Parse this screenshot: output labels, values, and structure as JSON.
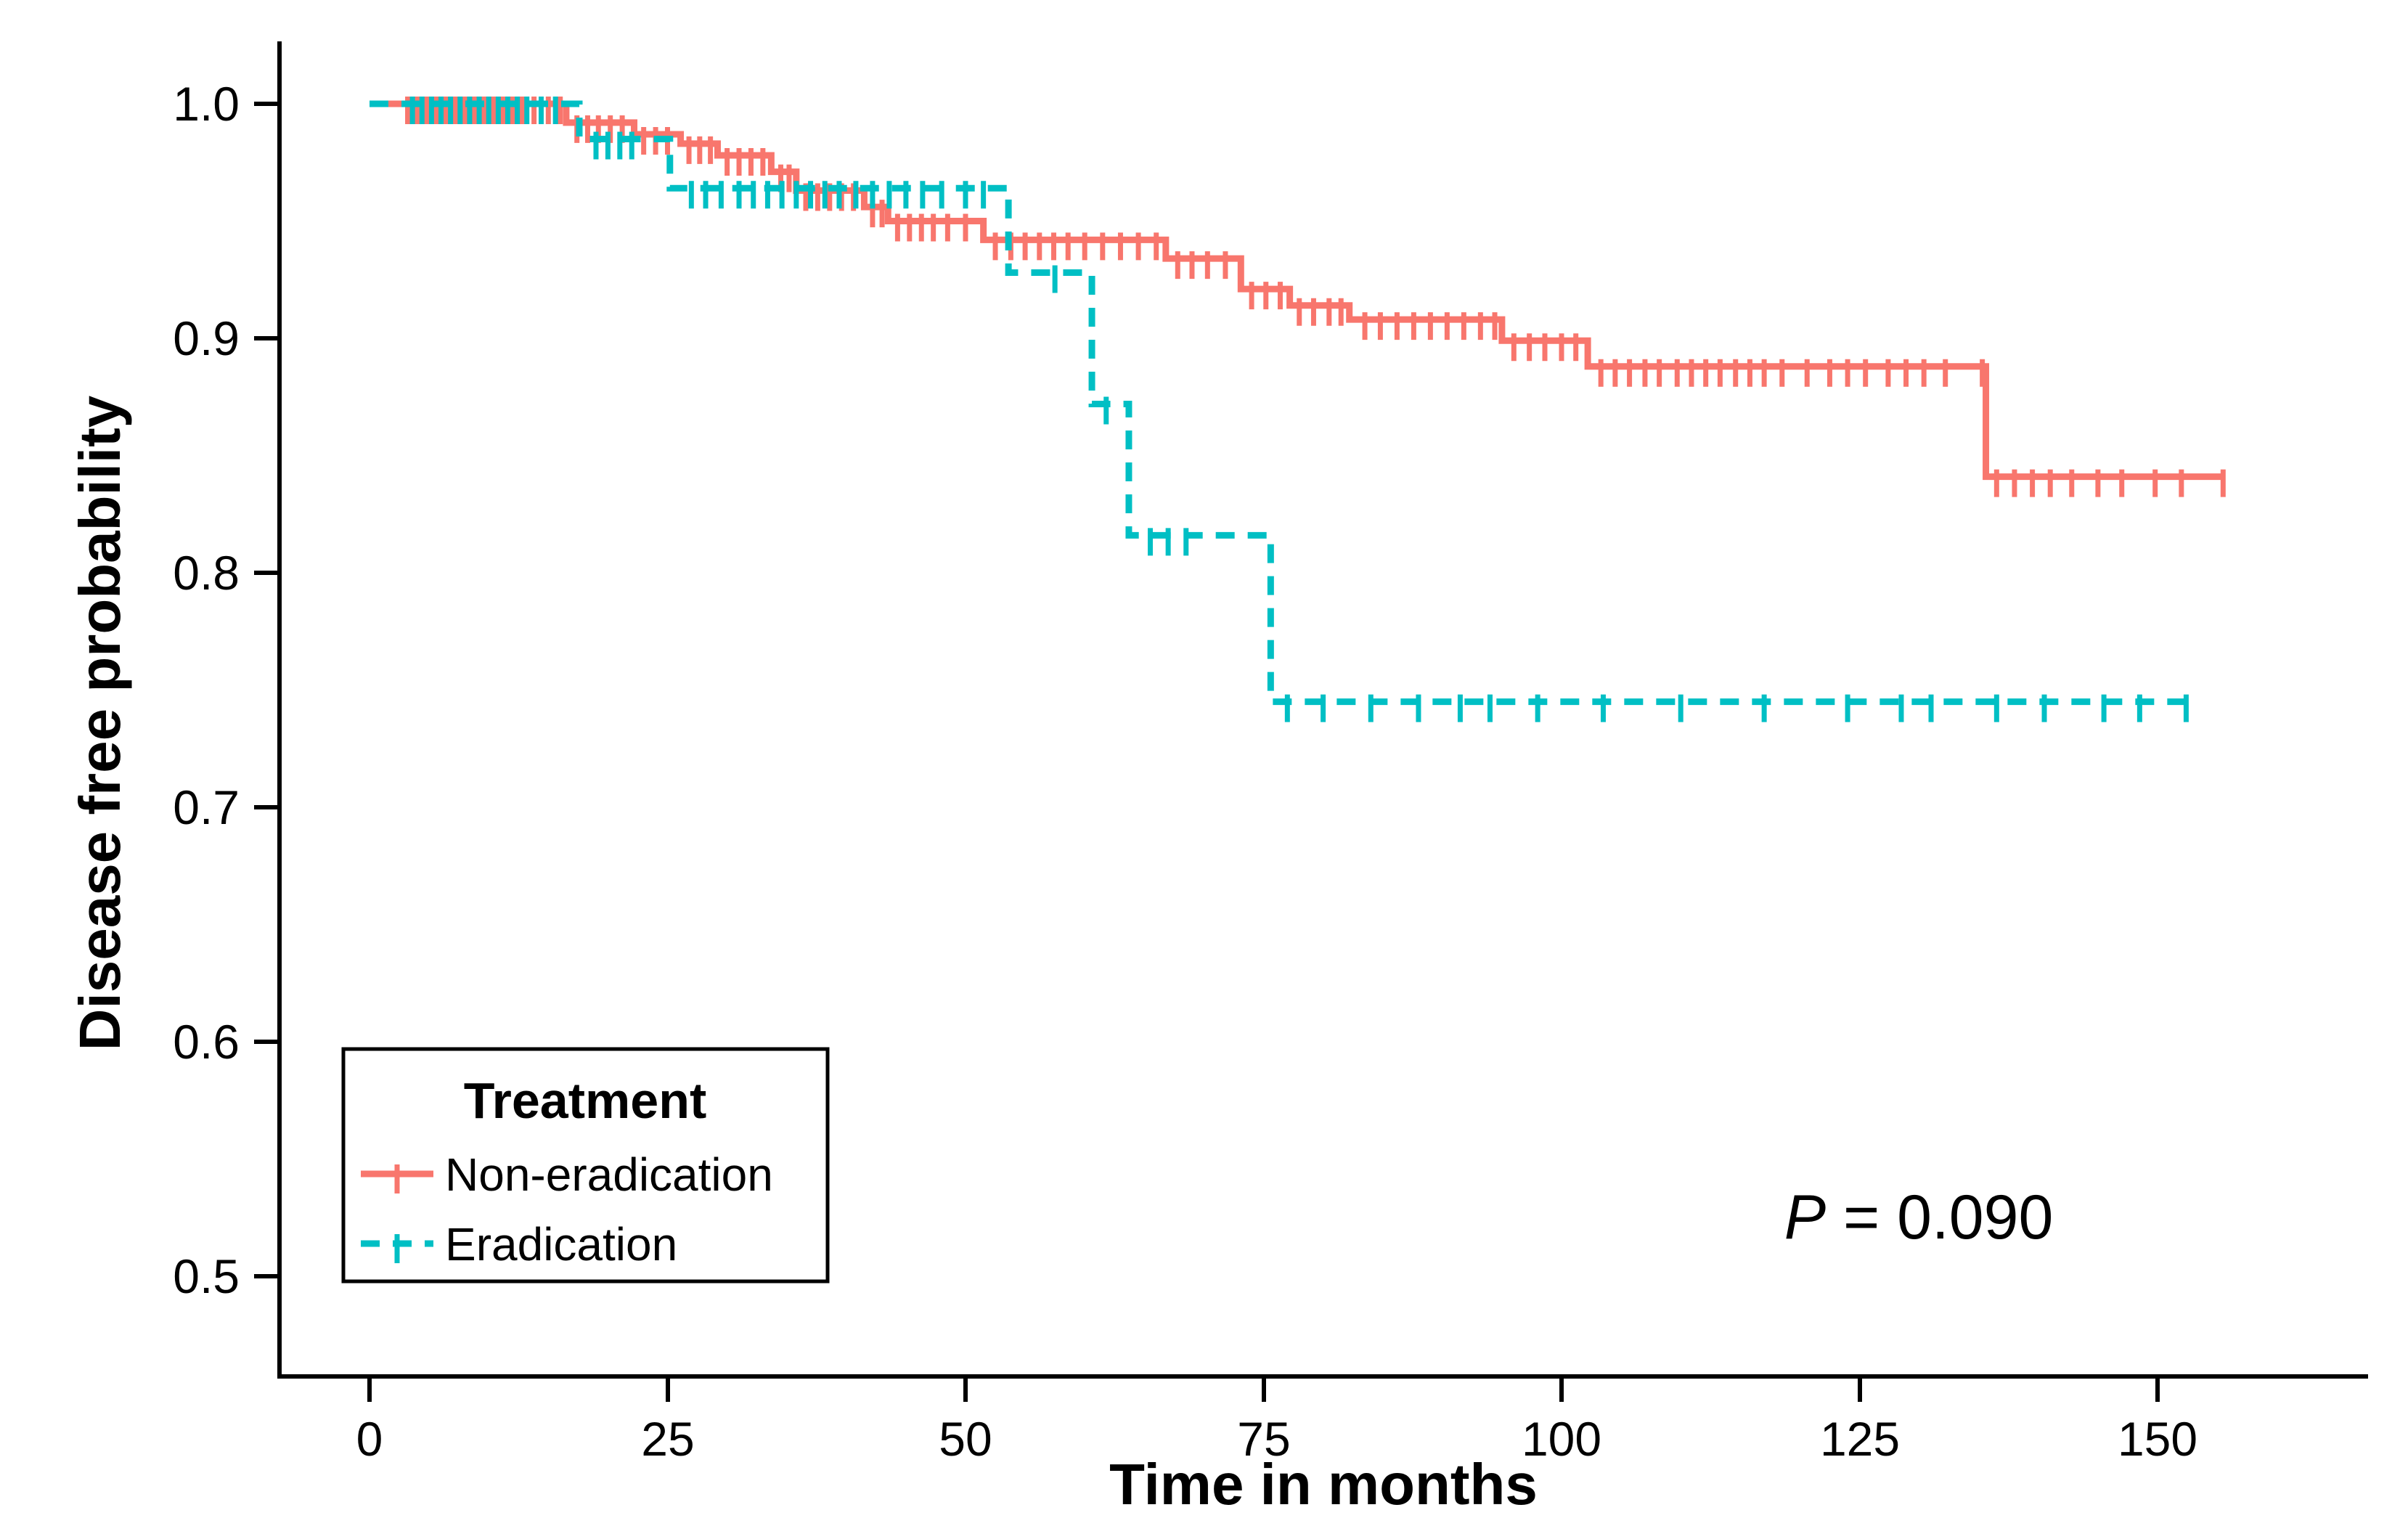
{
  "chart_data": {
    "type": "line",
    "subtype": "kaplan-meier-step",
    "title": "",
    "xlabel": "Time in months",
    "ylabel": "Disease free probability",
    "x_ticks": [
      0,
      25,
      50,
      75,
      100,
      125,
      150
    ],
    "x_tick_labels": [
      "0",
      "25",
      "50",
      "75",
      "100",
      "125",
      "150"
    ],
    "y_ticks": [
      1.0,
      0.9,
      0.8,
      0.7,
      0.6,
      0.5
    ],
    "y_tick_labels": [
      "1.0",
      "0.9",
      "0.8",
      "0.7",
      "0.6",
      "0.5"
    ],
    "xlim": [
      0,
      167
    ],
    "ylim": [
      0.457,
      1.0
    ],
    "grid": false,
    "legend": {
      "title": "Treatment",
      "position": "bottom-left-inside",
      "entries": [
        {
          "label": "Non-eradication",
          "color": "#F8766D",
          "dash": "solid"
        },
        {
          "label": "Eradication",
          "color": "#00BFC4",
          "dash": "dashed"
        }
      ]
    },
    "annotation": {
      "text": "P = 0.090",
      "prefix": "P",
      "rest": " = 0.090"
    },
    "series": [
      {
        "name": "Non-eradication",
        "color": "#F8766D",
        "style": "solid",
        "end_time": 155.5,
        "steps": [
          [
            0,
            1.0
          ],
          [
            16.5,
            0.992
          ],
          [
            22.2,
            0.987
          ],
          [
            26.1,
            0.983
          ],
          [
            29.2,
            0.978
          ],
          [
            33.7,
            0.971
          ],
          [
            35.8,
            0.963
          ],
          [
            41.5,
            0.956
          ],
          [
            43.5,
            0.95
          ],
          [
            51.5,
            0.942
          ],
          [
            66.8,
            0.934
          ],
          [
            73.1,
            0.921
          ],
          [
            77.2,
            0.914
          ],
          [
            82.2,
            0.908
          ],
          [
            95.0,
            0.899
          ],
          [
            102.2,
            0.888
          ],
          [
            135.6,
            0.841
          ]
        ],
        "censors": [
          {
            "p": 1.0,
            "t": [
              3.2,
              4.0,
              4.8,
              5.6,
              6.4,
              7.2,
              8.0,
              8.8,
              9.6,
              10.4,
              11.2,
              12.0,
              12.8,
              13.8,
              15.0,
              16.0
            ]
          },
          {
            "p": 0.992,
            "t": [
              17.4,
              18.3,
              19.2,
              20.2,
              21.2
            ]
          },
          {
            "p": 0.987,
            "t": [
              23.0,
              24.0,
              25.0
            ]
          },
          {
            "p": 0.983,
            "t": [
              26.8,
              27.7,
              28.6
            ]
          },
          {
            "p": 0.978,
            "t": [
              30.0,
              31.0,
              32.0,
              33.0
            ]
          },
          {
            "p": 0.971,
            "t": [
              34.5,
              35.2
            ]
          },
          {
            "p": 0.963,
            "t": [
              36.6,
              37.6,
              38.6,
              39.6,
              40.6
            ]
          },
          {
            "p": 0.956,
            "t": [
              42.2,
              43.0
            ]
          },
          {
            "p": 0.95,
            "t": [
              44.3,
              45.3,
              46.3,
              47.3,
              48.5,
              50.0
            ]
          },
          {
            "p": 0.942,
            "t": [
              52.5,
              53.8,
              55.0,
              56.2,
              57.4,
              58.6,
              60.0,
              61.5,
              63.0,
              64.5,
              66.0
            ]
          },
          {
            "p": 0.934,
            "t": [
              67.8,
              69.0,
              70.3,
              71.8
            ]
          },
          {
            "p": 0.921,
            "t": [
              74.0,
              75.2,
              76.4
            ]
          },
          {
            "p": 0.914,
            "t": [
              78.0,
              79.2,
              80.5,
              81.5
            ]
          },
          {
            "p": 0.908,
            "t": [
              83.5,
              84.8,
              86.2,
              87.6,
              89.0,
              90.4,
              91.8,
              93.2,
              94.4
            ]
          },
          {
            "p": 0.899,
            "t": [
              96.0,
              97.3,
              98.6,
              100.0,
              101.2
            ]
          },
          {
            "p": 0.888,
            "t": [
              103.3,
              104.5,
              105.7,
              107.0,
              108.2,
              109.7,
              110.9,
              112.1,
              113.3,
              114.6,
              115.8,
              117.0,
              118.5,
              120.6,
              122.5,
              124.0,
              125.5,
              127.4,
              128.9,
              130.4,
              132.2,
              135.3
            ]
          },
          {
            "p": 0.841,
            "t": [
              136.5,
              138.0,
              139.5,
              141.0,
              142.8,
              145.0,
              147.0,
              149.8,
              152.0,
              155.5
            ]
          }
        ]
      },
      {
        "name": "Eradication",
        "color": "#00BFC4",
        "style": "dashed",
        "end_time": 152.4,
        "steps": [
          [
            0,
            1.0
          ],
          [
            17.6,
            0.985
          ],
          [
            25.2,
            0.964
          ],
          [
            53.6,
            0.928
          ],
          [
            60.6,
            0.872
          ],
          [
            63.7,
            0.816
          ],
          [
            75.6,
            0.745
          ]
        ],
        "censors": [
          {
            "p": 1.0,
            "t": [
              3.6,
              4.4,
              5.2,
              6.0,
              6.8,
              7.6,
              8.4,
              9.2,
              10.0,
              10.8,
              11.6,
              12.4,
              13.2,
              14.4,
              15.6
            ]
          },
          {
            "p": 0.985,
            "t": [
              19.0,
              20.0,
              21.0,
              22.0
            ]
          },
          {
            "p": 0.964,
            "t": [
              27.0,
              28.2,
              29.5,
              31.0,
              32.2,
              33.4,
              34.6,
              35.8,
              37.0,
              38.2,
              39.4,
              40.8,
              42.2,
              43.6,
              45.0,
              46.4,
              48.0,
              50.0,
              51.5
            ]
          },
          {
            "p": 0.928,
            "t": [
              57.5
            ]
          },
          {
            "p": 0.872,
            "t": [
              61.8
            ]
          },
          {
            "p": 0.816,
            "t": [
              65.5,
              67.0,
              68.5
            ]
          },
          {
            "p": 0.745,
            "t": [
              77.0,
              80.0,
              84.0,
              88.0,
              91.5,
              94.0,
              98.0,
              103.5,
              110.0,
              117.0,
              124.0,
              128.5,
              131.0,
              136.5,
              140.5,
              145.5,
              148.5,
              152.4
            ]
          }
        ]
      }
    ]
  }
}
